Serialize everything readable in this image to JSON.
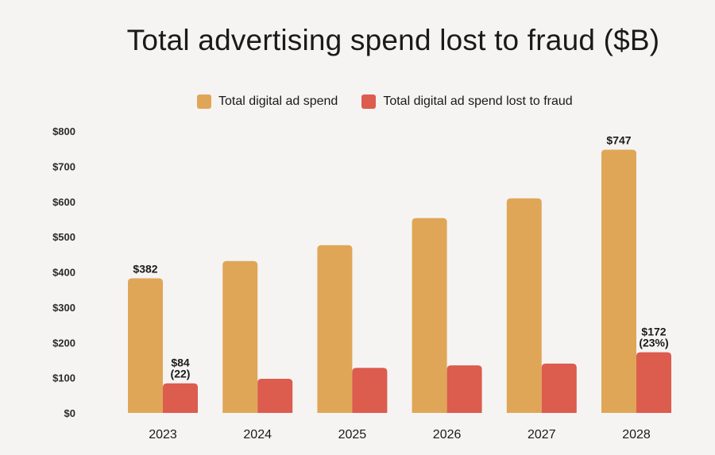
{
  "chart_data": {
    "type": "bar",
    "title": "Total advertising spend lost to fraud ($B)",
    "categories": [
      "2023",
      "2024",
      "2025",
      "2026",
      "2027",
      "2028"
    ],
    "series": [
      {
        "name": "Total digital ad spend",
        "color": "#e0a657",
        "values": [
          382,
          431,
          476,
          553,
          609,
          747
        ]
      },
      {
        "name": "Total digital ad spend lost to fraud",
        "color": "#dc5c4e",
        "values": [
          84,
          97,
          128,
          135,
          140,
          172
        ]
      }
    ],
    "yticks": [
      "$0",
      "$100",
      "$200",
      "$300",
      "$400",
      "$500",
      "$600",
      "$700",
      "$800"
    ],
    "ylim": [
      0,
      800
    ],
    "xlabel": "",
    "ylabel": "",
    "legend_position": "top",
    "data_labels": [
      {
        "series": 0,
        "index": 0,
        "lines": [
          "$382"
        ]
      },
      {
        "series": 1,
        "index": 0,
        "lines": [
          "$84",
          "(22)"
        ]
      },
      {
        "series": 0,
        "index": 5,
        "lines": [
          "$747"
        ]
      },
      {
        "series": 1,
        "index": 5,
        "lines": [
          "$172",
          "(23%)"
        ]
      }
    ]
  }
}
